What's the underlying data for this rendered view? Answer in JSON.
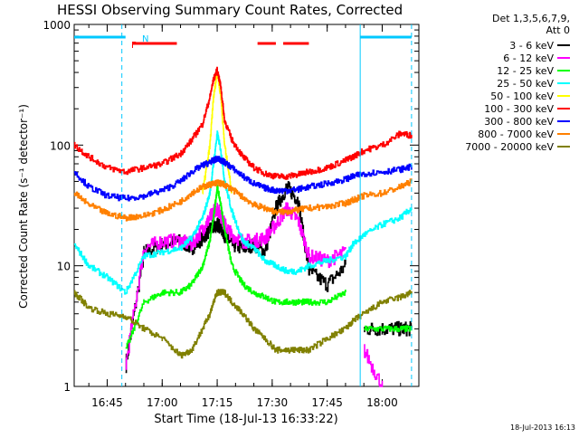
{
  "chart_data": {
    "type": "line",
    "title": "HESSI Observing Summary Count Rates, Corrected",
    "xlabel": "Start Time (18-Jul-13 16:33:22)",
    "ylabel": "Corrected Count Rate (s⁻¹ detector⁻¹)",
    "ylim": [
      1,
      1000
    ],
    "ylog": true,
    "xlim": [
      "16:36",
      "18:10"
    ],
    "x_ticks": [
      "16:45",
      "17:00",
      "17:15",
      "17:30",
      "17:45",
      "18:00"
    ],
    "y_ticks": [
      "1",
      "10",
      "100",
      "1000"
    ],
    "grid": false,
    "legend_header": [
      "Det 1,3,5,6,7,9,",
      "Att 0"
    ],
    "legend_position": "right",
    "footer_date": "18-Jul-2013 16:13",
    "time_points": [
      "16:36",
      "16:40",
      "16:45",
      "16:50",
      "16:55",
      "17:00",
      "17:05",
      "17:08",
      "17:11",
      "17:13",
      "17:14",
      "17:15",
      "17:16",
      "17:17",
      "17:19",
      "17:22",
      "17:25",
      "17:28",
      "17:31",
      "17:34",
      "17:37",
      "17:40",
      "17:45",
      "17:50",
      "17:52",
      "17:55",
      "18:00",
      "18:05",
      "18:08"
    ],
    "series": [
      {
        "name": "3 - 6 keV",
        "color": "#000000",
        "values": [
          null,
          null,
          null,
          1.5,
          13,
          15,
          16,
          14,
          17,
          20,
          21,
          22,
          21,
          18,
          15,
          14,
          15,
          13,
          30,
          45,
          35,
          9,
          7,
          10,
          null,
          3,
          3,
          3,
          3
        ]
      },
      {
        "name": "6 - 12 keV",
        "color": "#ff00ff",
        "values": [
          null,
          null,
          null,
          1.5,
          14,
          16,
          16,
          15,
          20,
          25,
          28,
          30,
          26,
          22,
          18,
          16,
          16,
          17,
          22,
          30,
          24,
          12,
          11,
          13,
          null,
          2,
          1,
          null,
          null
        ]
      },
      {
        "name": "12 - 25 keV",
        "color": "#00ff00",
        "values": [
          null,
          null,
          null,
          2,
          5,
          6,
          6,
          7,
          10,
          16,
          25,
          45,
          32,
          20,
          10,
          7,
          6,
          5.5,
          5,
          5,
          5,
          5,
          5,
          6,
          null,
          3,
          3,
          3,
          3
        ]
      },
      {
        "name": "25 - 50 keV",
        "color": "#00ffff",
        "values": [
          15,
          10,
          8,
          6,
          12,
          13,
          14,
          17,
          25,
          40,
          70,
          125,
          90,
          50,
          28,
          16,
          14,
          11,
          10,
          9,
          9,
          10,
          11,
          12,
          15,
          18,
          22,
          25,
          30
        ]
      },
      {
        "name": "50 - 100 keV",
        "color": "#ffff00",
        "values": [
          null,
          null,
          null,
          null,
          null,
          null,
          null,
          null,
          40,
          100,
          250,
          400,
          250,
          100,
          40,
          null,
          null,
          null,
          null,
          null,
          null,
          null,
          null,
          null,
          null,
          null,
          null,
          null,
          null
        ]
      },
      {
        "name": "100 - 300 keV",
        "color": "#ff0000",
        "values": [
          100,
          80,
          65,
          60,
          65,
          70,
          85,
          110,
          150,
          250,
          350,
          420,
          300,
          160,
          110,
          80,
          65,
          58,
          55,
          55,
          57,
          60,
          65,
          75,
          80,
          90,
          100,
          125,
          120
        ]
      },
      {
        "name": "300 - 800 keV",
        "color": "#0000ff",
        "values": [
          60,
          45,
          38,
          36,
          38,
          42,
          50,
          60,
          68,
          72,
          75,
          77,
          75,
          72,
          65,
          55,
          48,
          44,
          42,
          42,
          43,
          45,
          48,
          52,
          55,
          58,
          60,
          63,
          66
        ]
      },
      {
        "name": "800 - 7000 keV",
        "color": "#ff8000",
        "values": [
          40,
          32,
          27,
          25,
          26,
          29,
          34,
          40,
          45,
          47,
          48,
          49,
          48,
          47,
          43,
          37,
          32,
          30,
          28,
          28,
          29,
          30,
          31,
          33,
          35,
          38,
          40,
          45,
          50
        ]
      },
      {
        "name": "7000 - 20000 keV",
        "color": "#808000",
        "values": [
          6,
          4.5,
          4,
          3.8,
          3,
          2.5,
          1.8,
          2,
          3,
          4,
          5,
          6,
          6,
          6,
          5,
          4,
          3,
          2.5,
          2,
          2,
          2,
          2,
          2.5,
          3,
          3.5,
          4,
          5,
          5.5,
          6
        ]
      }
    ],
    "annotations": [
      {
        "label": "F",
        "color": "#ff0000"
      },
      {
        "label": "N",
        "color": "#00c8ff"
      }
    ],
    "event_bars": [
      {
        "color": "#00c8ff",
        "from": "16:36",
        "to": "16:50"
      },
      {
        "color": "#00c8ff",
        "from": "17:54",
        "to": "18:08"
      },
      {
        "color": "#ff0000",
        "from": "16:52",
        "to": "17:04"
      },
      {
        "color": "#ff0000",
        "from": "17:26",
        "to": "17:31"
      },
      {
        "color": "#ff0000",
        "from": "17:33",
        "to": "17:40"
      }
    ],
    "marker_lines": [
      {
        "color": "#00c8ff",
        "at": "16:49",
        "style": "dashed"
      },
      {
        "color": "#00c8ff",
        "at": "17:54",
        "style": "solid"
      },
      {
        "color": "#00c8ff",
        "at": "18:08",
        "style": "dashed"
      }
    ]
  }
}
